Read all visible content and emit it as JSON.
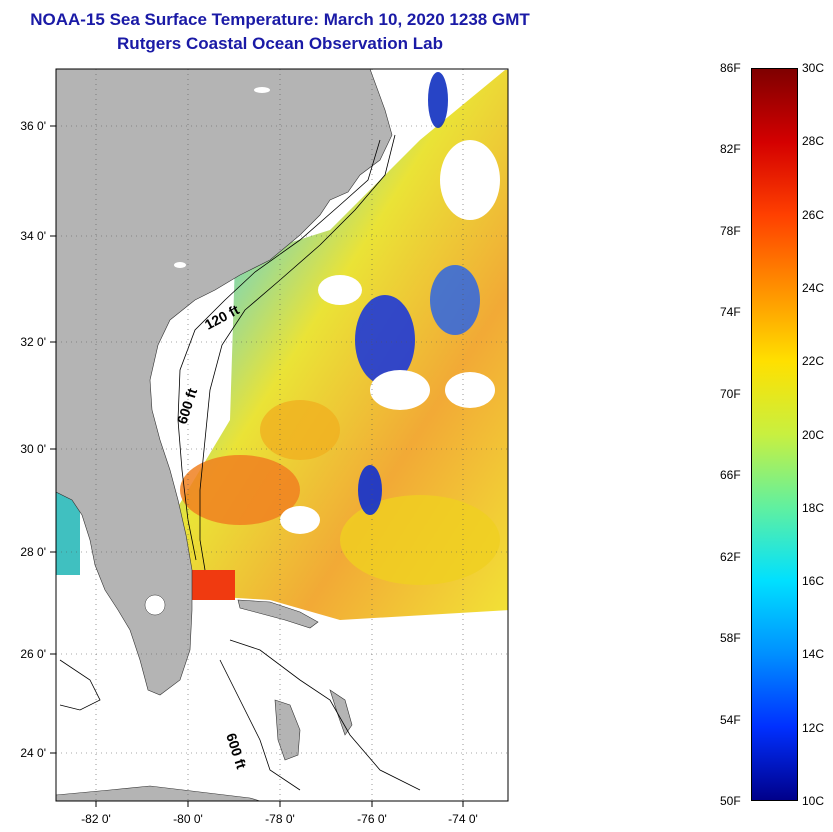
{
  "header": {
    "title": "NOAA-15 Sea Surface Temperature:  March 10, 2020 1238 GMT",
    "subtitle": "Rutgers Coastal Ocean Observation Lab"
  },
  "map": {
    "lat_ticks": [
      {
        "lat": 36,
        "label": "36 0'"
      },
      {
        "lat": 34,
        "label": "34 0'"
      },
      {
        "lat": 32,
        "label": "32 0'"
      },
      {
        "lat": 30,
        "label": "30 0'"
      },
      {
        "lat": 28,
        "label": "28 0'"
      },
      {
        "lat": 26,
        "label": "26 0'"
      },
      {
        "lat": 24,
        "label": "24 0'"
      }
    ],
    "lon_ticks": [
      {
        "lon": -82,
        "label": "-82 0'"
      },
      {
        "lon": -80,
        "label": "-80 0'"
      },
      {
        "lon": -78,
        "label": "-78 0'"
      },
      {
        "lon": -76,
        "label": "-76 0'"
      },
      {
        "lon": -74,
        "label": "-74 0'"
      }
    ],
    "lat_range": [
      23,
      37.1
    ],
    "lon_range": [
      -83,
      -73
    ],
    "contour_labels": [
      "120 ft",
      "600 ft",
      "600 ft"
    ],
    "land_color": "#b4b4b4"
  },
  "colorbar": {
    "fahrenheit_labels": [
      "86F",
      "82F",
      "78F",
      "74F",
      "70F",
      "66F",
      "62F",
      "58F",
      "54F",
      "50F"
    ],
    "celsius_labels": [
      "30C",
      "28C",
      "26C",
      "24C",
      "22C",
      "20C",
      "18C",
      "16C",
      "14C",
      "12C",
      "10C"
    ],
    "colors": [
      "#7f0000",
      "#d40000",
      "#ff4000",
      "#ff9000",
      "#ffe000",
      "#c8f040",
      "#60f0a0",
      "#00e0ff",
      "#0090ff",
      "#0030ff",
      "#00008a"
    ]
  }
}
